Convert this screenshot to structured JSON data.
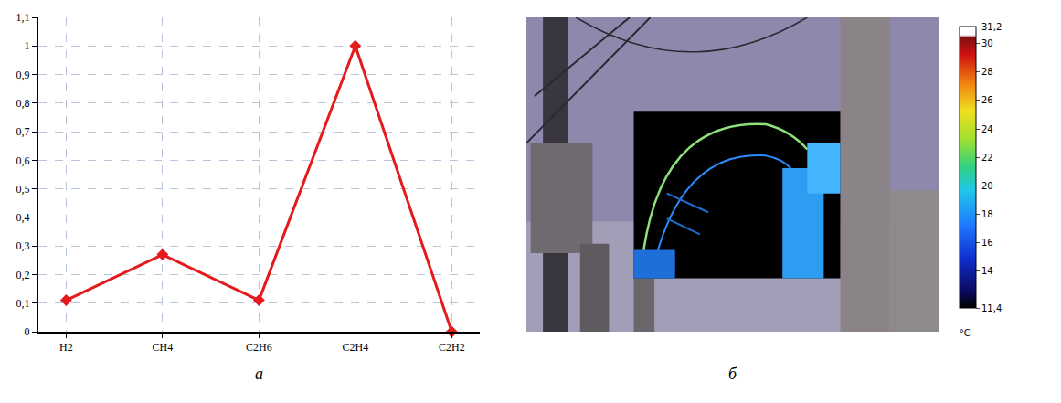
{
  "chart_data": [
    {
      "type": "line",
      "label": "а",
      "categories": [
        "H2",
        "CH4",
        "C2H6",
        "C2H4",
        "C2H2"
      ],
      "values": [
        0.11,
        0.27,
        0.11,
        1,
        0
      ],
      "color": "#e41a1c",
      "marker": "diamond",
      "ylim": [
        0,
        1.1
      ],
      "yticks": [
        0,
        {
          "value": 0.1,
          "label": "0,1"
        },
        {
          "value": 0.2,
          "label": "0,2"
        },
        {
          "value": 0.3,
          "label": "0,3"
        },
        {
          "value": 0.4,
          "label": "0,4"
        },
        {
          "value": 0.5,
          "label": "0,5"
        },
        {
          "value": 0.6,
          "label": "0,6"
        },
        {
          "value": 0.7,
          "label": "0,7"
        },
        {
          "value": 0.8,
          "label": "0,8"
        },
        {
          "value": 0.9,
          "label": "0,9"
        },
        1,
        {
          "value": 1.1,
          "label": "1,1"
        }
      ],
      "grid": true
    },
    {
      "type": "image",
      "label": "б",
      "colorbar": {
        "range": [
          11.4,
          31.2
        ],
        "ticks": [
          {
            "value": 11.4,
            "label": "11,4"
          },
          14,
          16,
          18,
          20,
          22,
          24,
          26,
          28,
          30,
          {
            "value": 31.2,
            "label": "31,2"
          }
        ],
        "title": "°C"
      }
    }
  ]
}
